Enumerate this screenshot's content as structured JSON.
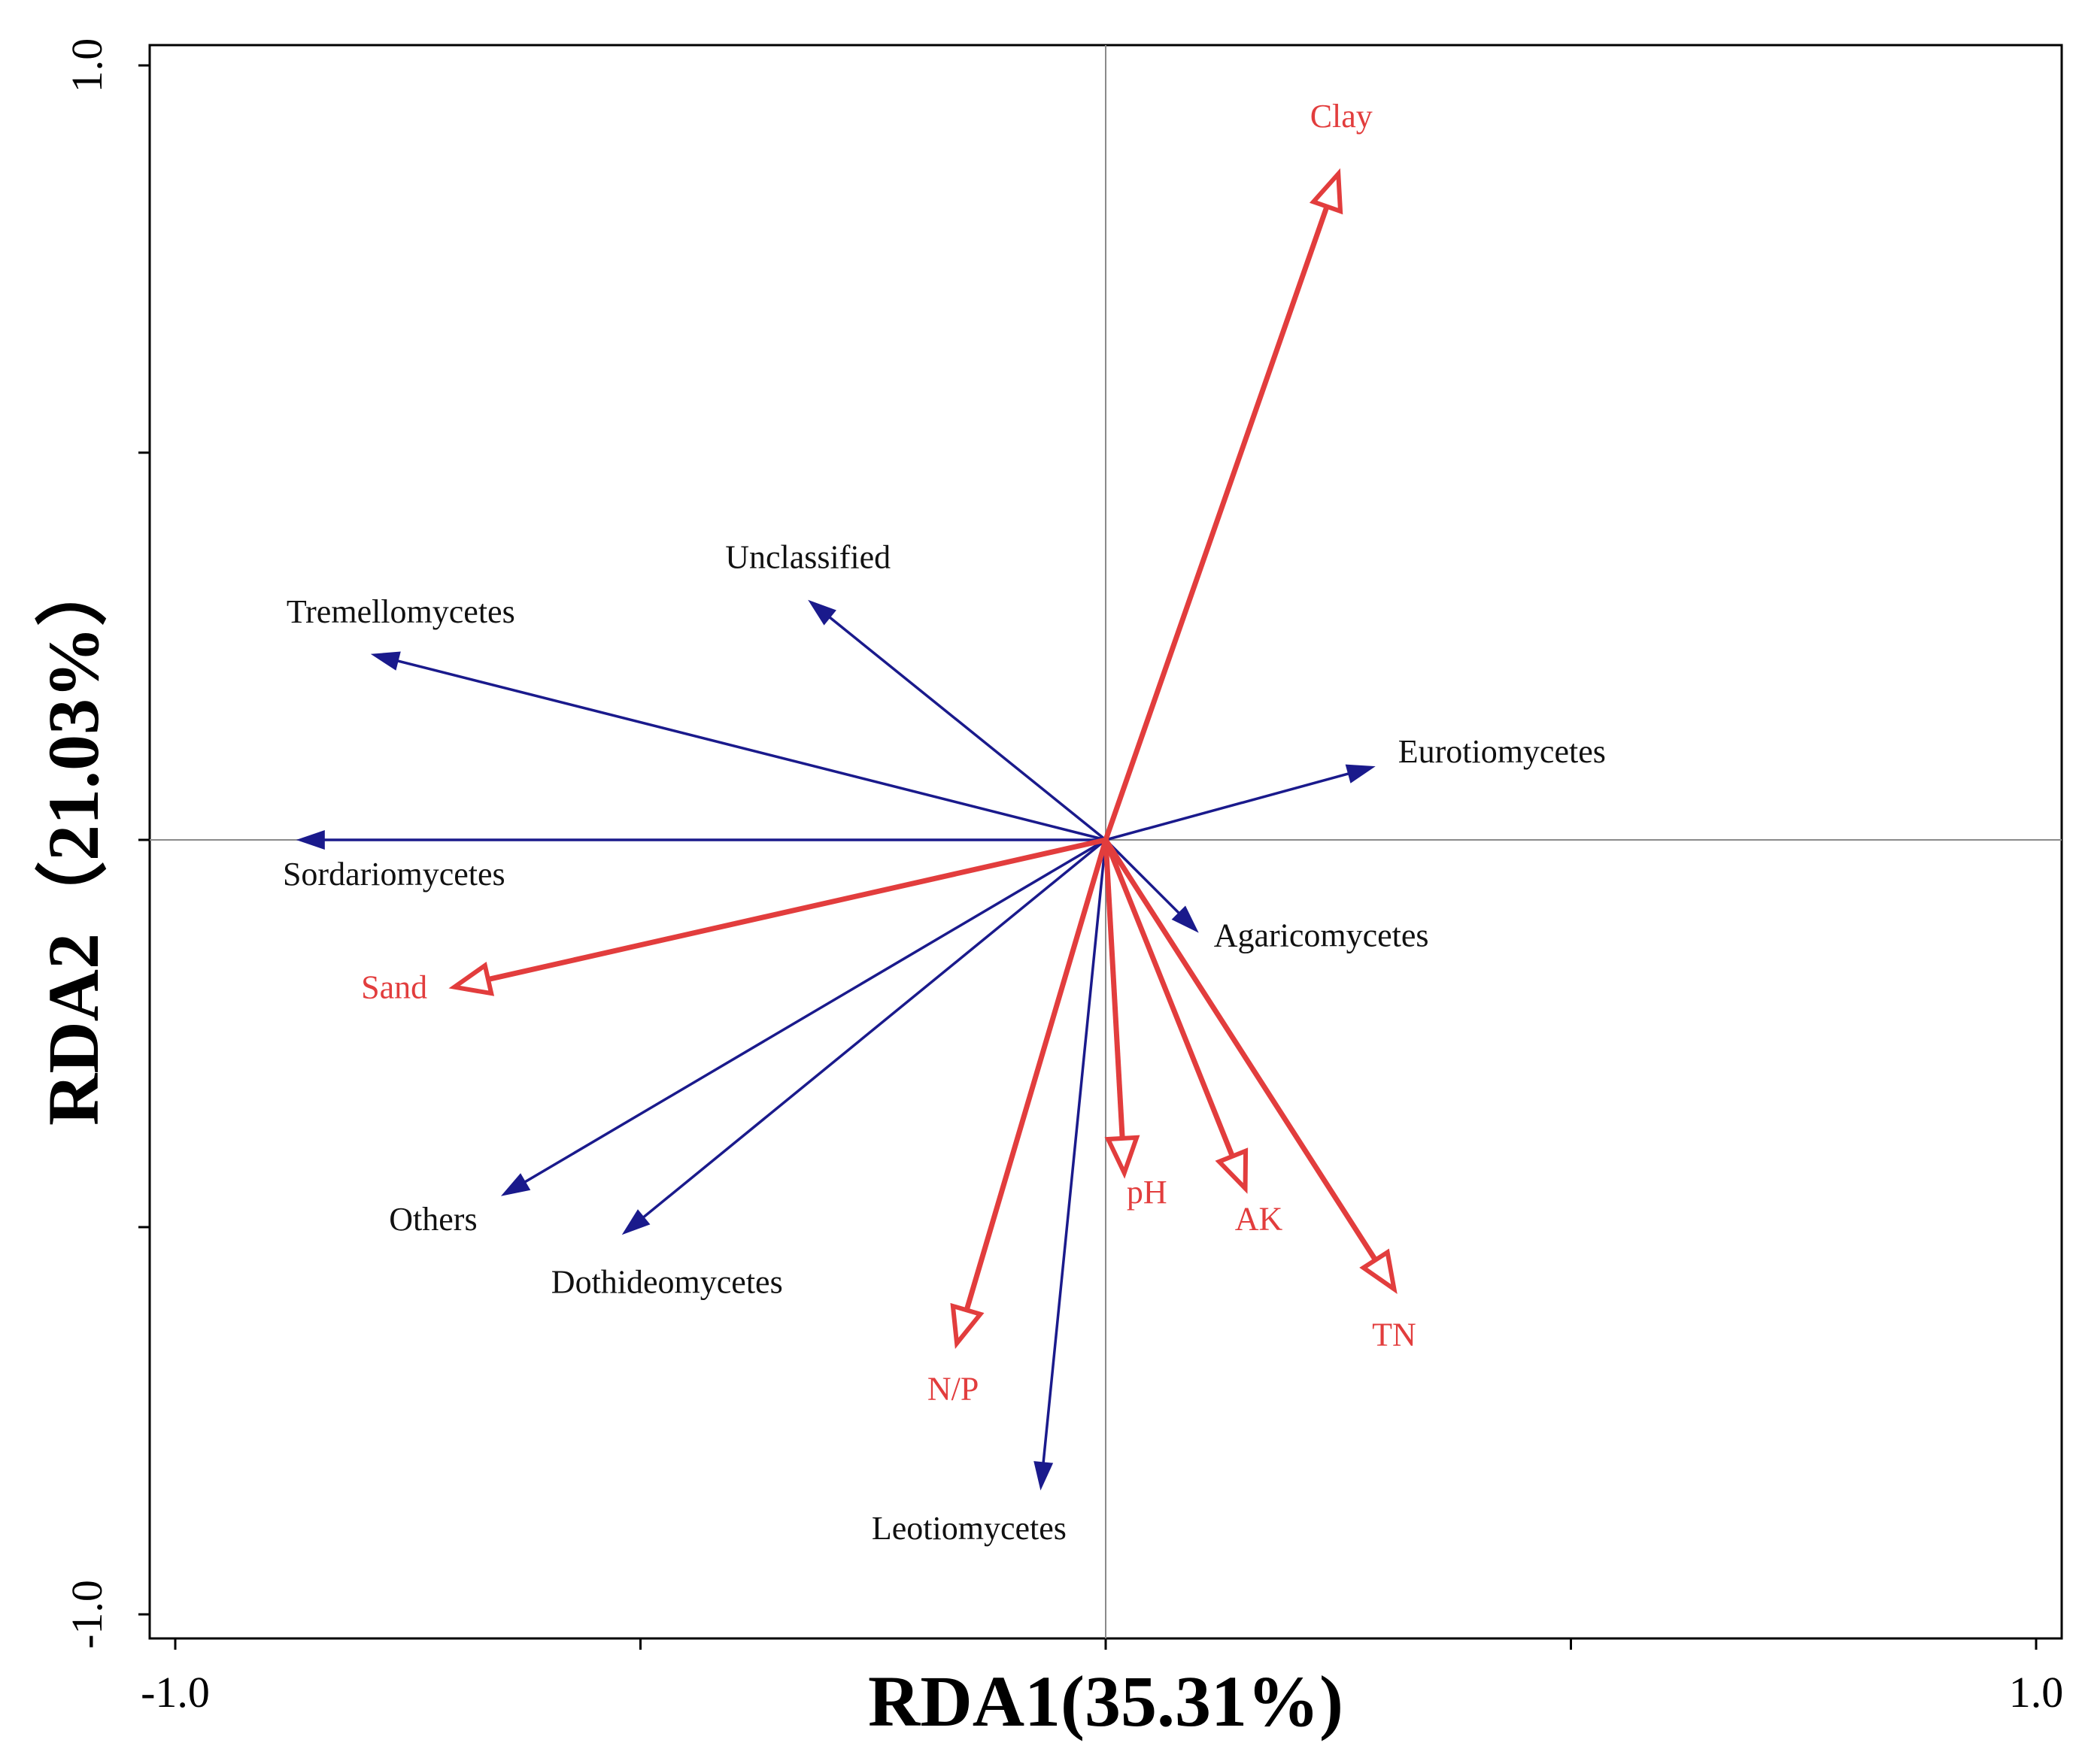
{
  "chart_data": {
    "type": "biplot",
    "xlabel": "RDA1(35.31%)",
    "ylabel": "RDA2（21.03%）",
    "xlim": [
      -1.0,
      1.0
    ],
    "ylim": [
      -1.0,
      1.0
    ],
    "x_tick_labels": [
      {
        "value": -1.0,
        "label": "-1.0"
      },
      {
        "value": 1.0,
        "label": "1.0"
      }
    ],
    "y_tick_labels": [
      {
        "value": 1.0,
        "label": "1.0"
      },
      {
        "value": -1.0,
        "label": "-1.0"
      }
    ],
    "x_ticks": [
      -1.0,
      -0.5,
      0.0,
      0.5,
      1.0
    ],
    "y_ticks": [
      -1.0,
      -0.5,
      0.0,
      0.5,
      1.0
    ],
    "species": [
      {
        "name": "Unclassified",
        "x": -0.32,
        "y": 0.31
      },
      {
        "name": "Tremellomycetes",
        "x": -0.79,
        "y": 0.24
      },
      {
        "name": "Eurotiomycetes",
        "x": 0.29,
        "y": 0.095
      },
      {
        "name": "Sordariomycetes",
        "x": -0.87,
        "y": 0.0
      },
      {
        "name": "Agaricomycetes",
        "x": 0.1,
        "y": -0.12
      },
      {
        "name": "Others",
        "x": -0.65,
        "y": -0.46
      },
      {
        "name": "Dothideomycetes",
        "x": -0.52,
        "y": -0.51
      },
      {
        "name": "Leotiomycetes",
        "x": -0.07,
        "y": -0.84
      }
    ],
    "env_factors": [
      {
        "name": "Clay",
        "x": 0.25,
        "y": 0.86
      },
      {
        "name": "Sand",
        "x": -0.7,
        "y": -0.19
      },
      {
        "name": "pH",
        "x": 0.02,
        "y": -0.43
      },
      {
        "name": "AK",
        "x": 0.15,
        "y": -0.45
      },
      {
        "name": "TN",
        "x": 0.31,
        "y": -0.58
      },
      {
        "name": "N/P",
        "x": -0.16,
        "y": -0.65
      }
    ]
  }
}
